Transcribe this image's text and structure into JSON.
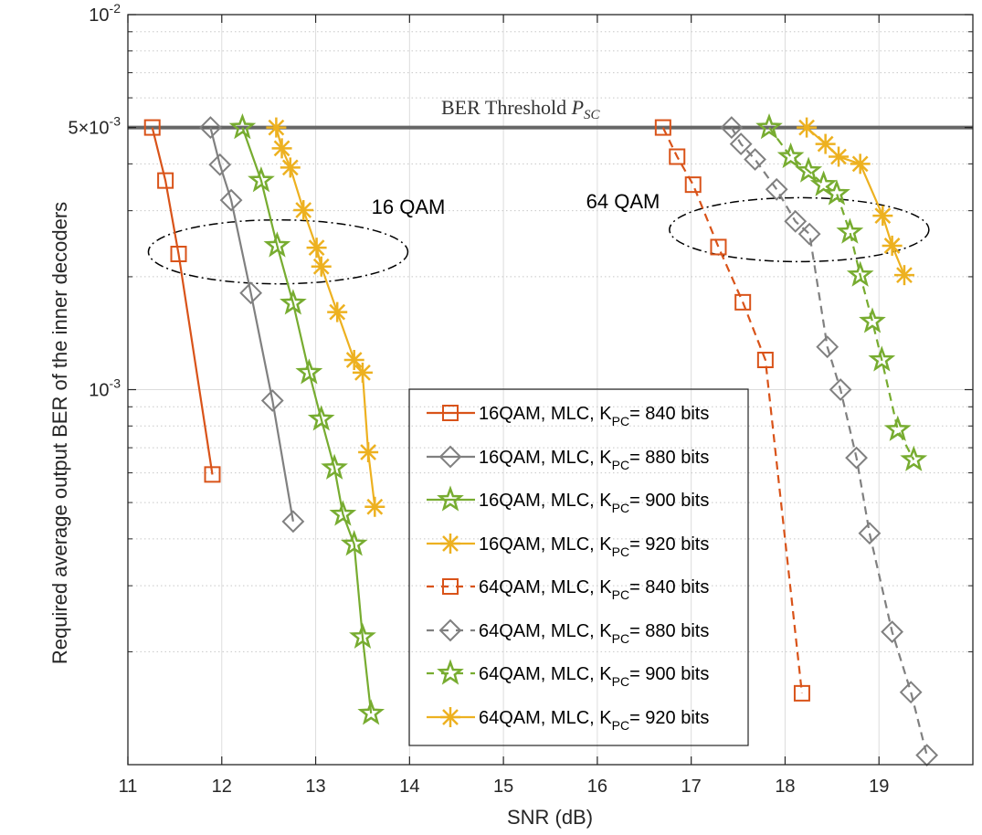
{
  "chart_data": {
    "type": "line",
    "title": "",
    "xlabel": "SNR (dB)",
    "ylabel": "Required average output BER of the inner decoders",
    "xlim": [
      11,
      20
    ],
    "ylim": [
      0.0001,
      0.01
    ],
    "yscale": "log",
    "grid": true,
    "x_ticks": [
      11,
      12,
      13,
      14,
      15,
      16,
      17,
      18,
      19
    ],
    "x_tick_labels": [
      "11",
      "12",
      "13",
      "14",
      "15",
      "16",
      "17",
      "18",
      "19"
    ],
    "y_ticks": [
      {
        "value": 0.01,
        "base": "10",
        "exp": "-2",
        "prefix": ""
      },
      {
        "value": 0.005,
        "base": "10",
        "exp": "-3",
        "prefix": "5×"
      },
      {
        "value": 0.001,
        "base": "10",
        "exp": "-3",
        "prefix": ""
      }
    ],
    "threshold": {
      "value": 0.005,
      "label": "BER Threshold ",
      "label_symbol": "P",
      "label_sub": "SC",
      "color": "#666666"
    },
    "annotations": [
      {
        "text": "16 QAM",
        "ellipse_center": [
          12.6,
          0.00233
        ]
      },
      {
        "text": "64 QAM",
        "ellipse_center": [
          18.15,
          0.00267
        ]
      }
    ],
    "legend": {
      "position": "bottom-center",
      "prefix_sub": "PC",
      "sub_base": "K"
    },
    "series": [
      {
        "name": "16QAM, MLC, K_PC= 840 bits",
        "legend_main": "16QAM, MLC, K",
        "legend_tail": "= 840 bits",
        "color": "#D95319",
        "marker": "square",
        "dash": "solid",
        "x": [
          11.26,
          11.4,
          11.54,
          11.9
        ],
        "y": [
          0.005,
          0.00361,
          0.0023,
          0.000594
        ]
      },
      {
        "name": "16QAM, MLC, K_PC= 880 bits",
        "legend_main": "16QAM, MLC, K",
        "legend_tail": "= 880 bits",
        "color": "#808080",
        "marker": "diamond",
        "dash": "solid",
        "x": [
          11.88,
          11.98,
          12.1,
          12.31,
          12.54,
          12.76
        ],
        "y": [
          0.005,
          0.00398,
          0.0032,
          0.00181,
          0.000935,
          0.000445
        ]
      },
      {
        "name": "16QAM, MLC, K_PC= 900 bits",
        "legend_main": "16QAM, MLC, K",
        "legend_tail": "= 900 bits",
        "color": "#77AC30",
        "marker": "star",
        "dash": "solid",
        "x": [
          12.22,
          12.42,
          12.59,
          12.76,
          12.93,
          13.06,
          13.2,
          13.29,
          13.41,
          13.5,
          13.59
        ],
        "y": [
          0.005,
          0.00361,
          0.00242,
          0.0017,
          0.00111,
          0.000834,
          0.000618,
          0.000465,
          0.000387,
          0.000219,
          0.000137
        ]
      },
      {
        "name": "16QAM, MLC, K_PC= 920 bits",
        "legend_main": "16QAM, MLC, K",
        "legend_tail": "= 920 bits",
        "color": "#EDB120",
        "marker": "asterisk",
        "dash": "solid",
        "x": [
          12.58,
          12.64,
          12.73,
          12.87,
          13.01,
          13.06,
          13.23,
          13.41,
          13.5,
          13.56,
          13.63
        ],
        "y": [
          0.005,
          0.0044,
          0.00391,
          0.00301,
          0.00239,
          0.00213,
          0.00161,
          0.0012,
          0.00111,
          0.000681,
          0.000487
        ]
      },
      {
        "name": "64QAM, MLC, K_PC= 840 bits",
        "legend_main": "64QAM, MLC, K",
        "legend_tail": "= 840 bits",
        "color": "#D95319",
        "marker": "square",
        "dash": "dashed",
        "x": [
          16.7,
          16.85,
          17.02,
          17.29,
          17.55,
          17.79,
          18.18
        ],
        "y": [
          0.005,
          0.00418,
          0.00352,
          0.0024,
          0.00171,
          0.0012,
          0.000155
        ]
      },
      {
        "name": "64QAM, MLC, K_PC= 880 bits",
        "legend_main": "64QAM, MLC, K",
        "legend_tail": "= 880 bits",
        "color": "#808080",
        "marker": "diamond",
        "dash": "dashed",
        "x": [
          17.43,
          17.53,
          17.68,
          17.91,
          18.11,
          18.26,
          18.45,
          18.59,
          18.76,
          18.9,
          19.14,
          19.34,
          19.51
        ],
        "y": [
          0.005,
          0.00452,
          0.00411,
          0.00342,
          0.00281,
          0.0026,
          0.0013,
          0.001,
          0.000658,
          0.000414,
          0.000226,
          0.000156,
          0.000106
        ]
      },
      {
        "name": "64QAM, MLC, K_PC= 900 bits",
        "legend_main": "64QAM, MLC, K",
        "legend_tail": "= 900 bits",
        "color": "#77AC30",
        "marker": "star",
        "dash": "dashed",
        "x": [
          17.83,
          18.06,
          18.25,
          18.41,
          18.55,
          18.69,
          18.8,
          18.93,
          19.03,
          19.2,
          19.37
        ],
        "y": [
          0.005,
          0.00418,
          0.00383,
          0.00352,
          0.00333,
          0.00263,
          0.00202,
          0.00152,
          0.0012,
          0.000782,
          0.00065
        ]
      },
      {
        "name": "64QAM, MLC, K_PC= 920 bits",
        "legend_main": "64QAM, MLC, K",
        "legend_tail": "= 920 bits",
        "color": "#EDB120",
        "marker": "asterisk",
        "dash": "solid",
        "x": [
          18.23,
          18.43,
          18.57,
          18.8,
          19.04,
          19.14,
          19.27
        ],
        "y": [
          0.005,
          0.00452,
          0.00418,
          0.004,
          0.00291,
          0.00242,
          0.00202
        ]
      }
    ]
  }
}
